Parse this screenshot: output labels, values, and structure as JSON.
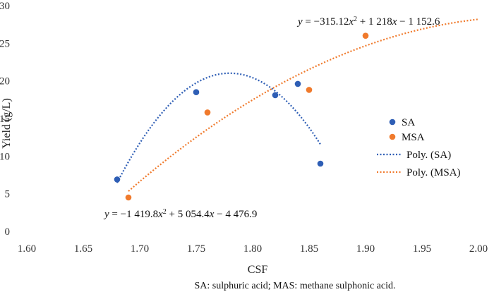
{
  "chart_data": {
    "type": "scatter",
    "xlabel": "CSF",
    "ylabel": "Yield (g/L)",
    "xlim": [
      1.6,
      2.0
    ],
    "ylim": [
      0,
      30
    ],
    "xticks": [
      "1.60",
      "1.65",
      "1.70",
      "1.75",
      "1.80",
      "1.85",
      "1.90",
      "1.95",
      "2.00"
    ],
    "yticks": [
      "0",
      "5",
      "10",
      "15",
      "20",
      "25",
      "30"
    ],
    "grid": false,
    "legend_position": "right",
    "series": [
      {
        "name": "SA",
        "color": "#2E5EB5",
        "x": [
          1.68,
          1.75,
          1.82,
          1.84,
          1.86
        ],
        "y": [
          6.9,
          18.5,
          18.1,
          19.6,
          9.0
        ]
      },
      {
        "name": "MSA",
        "color": "#F07A2C",
        "x": [
          1.69,
          1.76,
          1.85,
          1.9
        ],
        "y": [
          4.5,
          15.8,
          18.8,
          26.0
        ]
      }
    ],
    "trendlines": [
      {
        "name": "Poly. (SA)",
        "color": "#2E5EB5",
        "equation": "y = −1 419.8x² + 5 054.4x − 4 476.9",
        "x_range": [
          1.68,
          1.86
        ]
      },
      {
        "name": "Poly. (MSA)",
        "color": "#F07A2C",
        "equation": "y = −315.12x² + 1 218x − 1 152.6",
        "x_range": [
          1.69,
          2.0
        ]
      }
    ],
    "footnote": "SA: sulphuric acid; MAS: methane sulphonic acid."
  }
}
